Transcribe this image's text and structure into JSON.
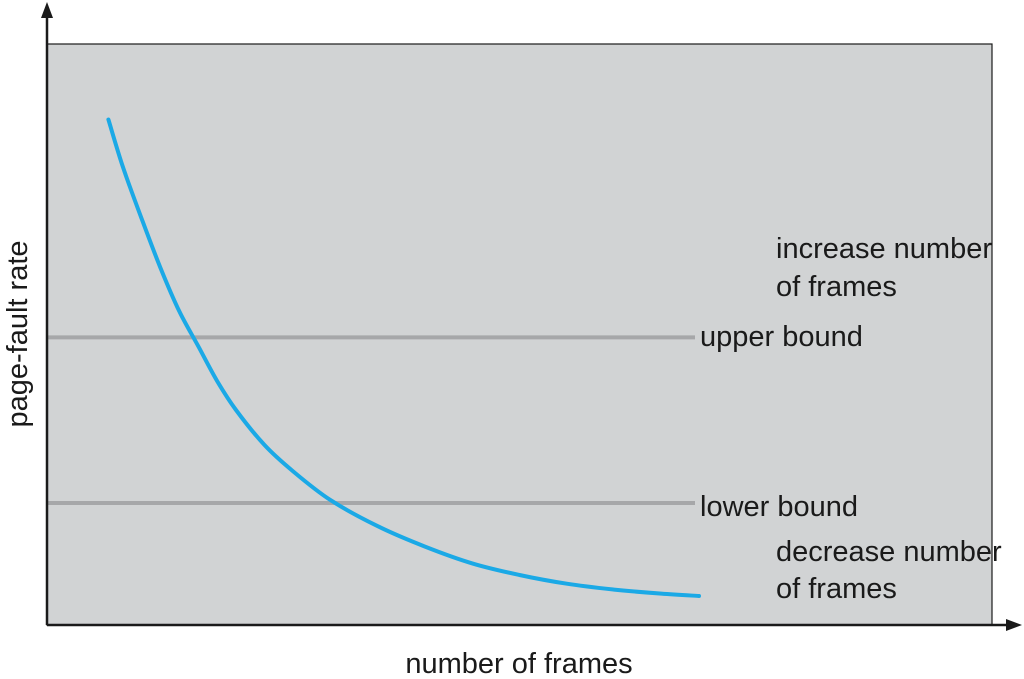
{
  "colors": {
    "plot_background": "#d1d3d4",
    "curve": "#1ba9e6",
    "bound_line": "#a6a7a9",
    "axis": "#1a1a1a"
  },
  "chart_data": {
    "type": "line",
    "title": "",
    "xlabel": "number of frames",
    "ylabel": "page-fault rate",
    "xlim": [
      0,
      100
    ],
    "ylim": [
      0,
      100
    ],
    "grid": false,
    "series": [
      {
        "x": [
          6.5,
          8,
          10,
          12,
          14,
          16,
          18,
          20,
          23,
          26,
          30,
          35,
          40,
          45,
          50,
          55,
          60,
          65,
          69
        ],
        "values": [
          87,
          79,
          70,
          61.5,
          54,
          48,
          42,
          37,
          31,
          26.5,
          21.5,
          17,
          13.5,
          10.6,
          8.6,
          7.1,
          6.1,
          5.4,
          5
        ]
      }
    ],
    "thresholds": [
      {
        "label": "upper bound",
        "value": 49.5
      },
      {
        "label": "lower bound",
        "value": 21
      }
    ],
    "annotations": [
      {
        "lines": [
          "increase number",
          "of frames"
        ]
      },
      {
        "lines": [
          "decrease number",
          "of frames"
        ]
      }
    ]
  }
}
